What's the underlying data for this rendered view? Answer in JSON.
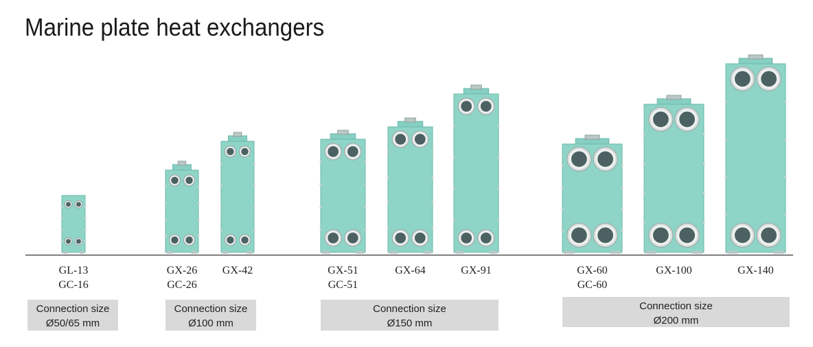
{
  "title": "Marine plate heat exchangers",
  "groups": [
    {
      "models": [
        {
          "lines": [
            "GL-13",
            "GC-16"
          ]
        }
      ],
      "connection": [
        "Connection size",
        "Ø50/65 mm"
      ]
    },
    {
      "models": [
        {
          "lines": [
            "GX-26",
            "GC-26"
          ]
        },
        {
          "lines": [
            "GX-42"
          ]
        }
      ],
      "connection": [
        "Connection size",
        "Ø100 mm"
      ]
    },
    {
      "models": [
        {
          "lines": [
            "GX-51",
            "GC-51"
          ]
        },
        {
          "lines": [
            "GX-64"
          ]
        },
        {
          "lines": [
            "GX-91"
          ]
        }
      ],
      "connection": [
        "Connection size",
        "Ø150 mm"
      ]
    },
    {
      "models": [
        {
          "lines": [
            "GX-60",
            "GC-60"
          ]
        },
        {
          "lines": [
            "GX-100"
          ]
        },
        {
          "lines": [
            "GX-140"
          ]
        }
      ],
      "connection": [
        "Connection size",
        "Ø200 mm"
      ]
    }
  ]
}
